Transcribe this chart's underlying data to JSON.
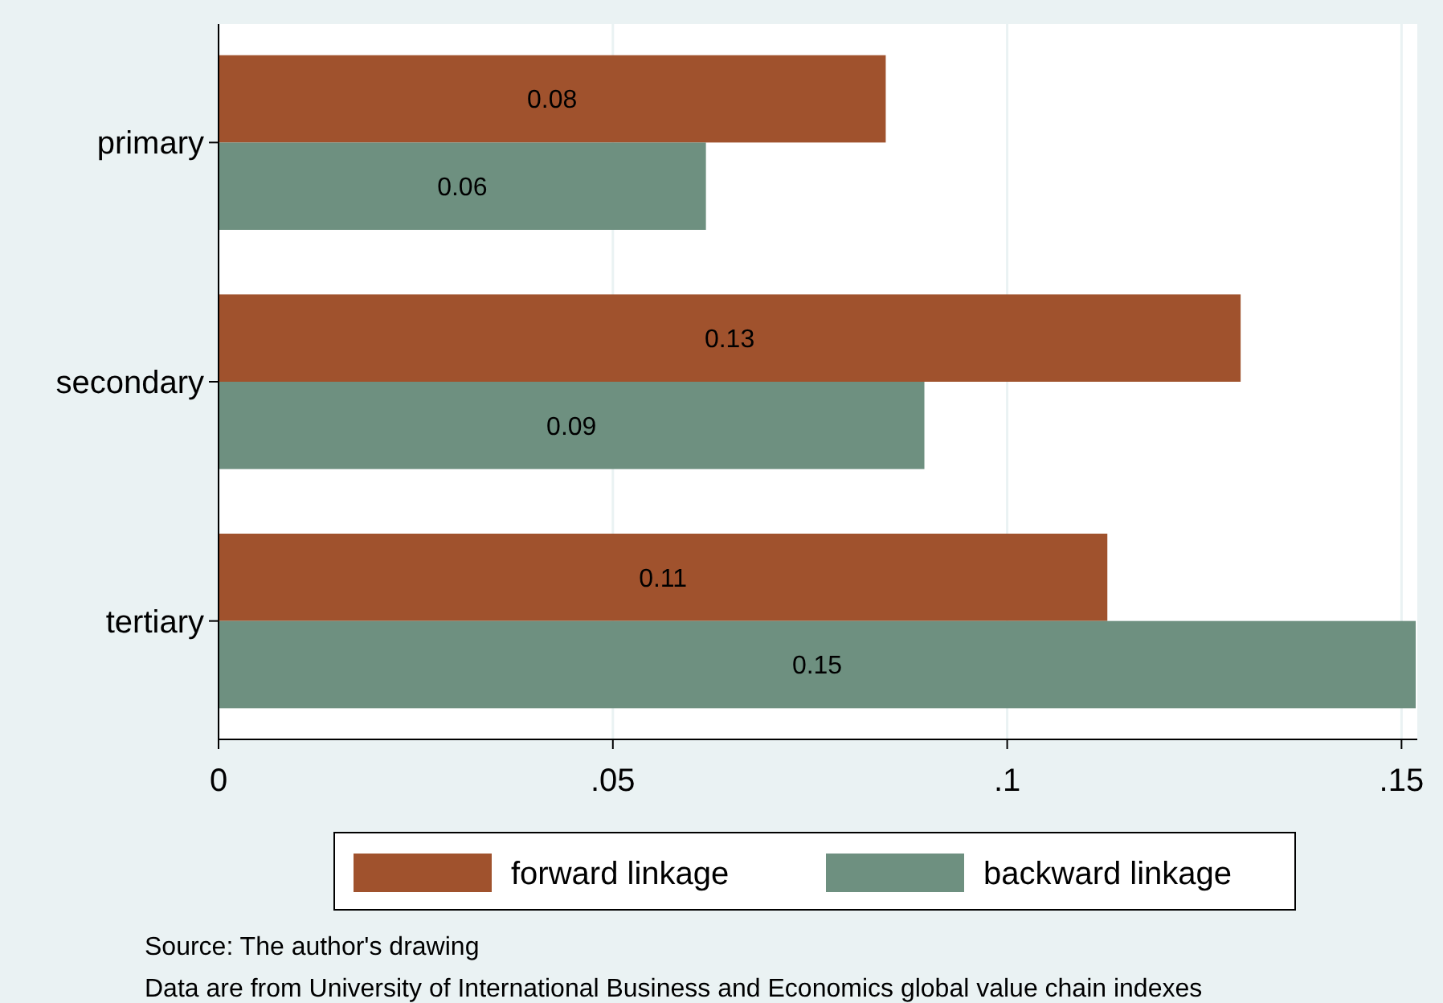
{
  "chart_data": {
    "type": "bar",
    "orientation": "horizontal",
    "categories": [
      "primary",
      "secondary",
      "tertiary"
    ],
    "series": [
      {
        "name": "forward linkage",
        "color": "#a0522d",
        "values": [
          0.0846,
          0.1296,
          0.1127
        ],
        "value_labels": [
          "0.08",
          "0.13",
          "0.11"
        ]
      },
      {
        "name": "backward linkage",
        "color": "#6e9080",
        "values": [
          0.0618,
          0.0895,
          0.1518
        ],
        "value_labels": [
          "0.06",
          "0.09",
          "0.15"
        ]
      }
    ],
    "xlim": [
      0,
      0.152
    ],
    "xticks": [
      {
        "value": 0,
        "label": "0"
      },
      {
        "value": 0.05,
        "label": ".05"
      },
      {
        "value": 0.1,
        "label": ".1"
      },
      {
        "value": 0.15,
        "label": ".15"
      }
    ],
    "grid": "x",
    "legend": "bottom",
    "annotations": [
      "Source: The author's drawing",
      "Data are from University of International Business and Economics global value chain indexes"
    ]
  }
}
